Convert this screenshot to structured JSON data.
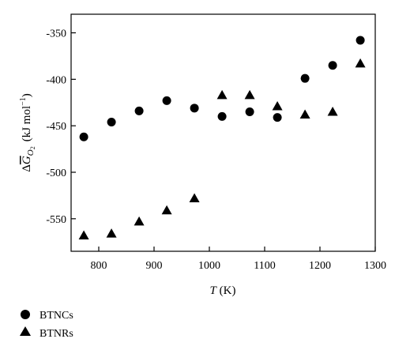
{
  "chart_data": {
    "type": "scatter",
    "xlabel": {
      "italic": "T",
      "rest": " (K)"
    },
    "ylabel": {
      "prefix": "Δ",
      "symbol": "G",
      "sub": "O",
      "sub2": "2",
      "unit": "(kJ mol",
      "unit_sup": "−1",
      "unit_end": ")"
    },
    "xlim": [
      750,
      1300
    ],
    "ylim": [
      -585,
      -330
    ],
    "xticks": [
      800,
      900,
      1000,
      1100,
      1200,
      1300
    ],
    "yticks": [
      -350,
      -400,
      -450,
      -500,
      -550
    ],
    "ytick_labels": [
      "-350",
      "-400",
      "-450",
      "-500",
      "-550"
    ],
    "legend_position": "bottom-left outside",
    "series": [
      {
        "name": "BTNCs",
        "marker": "circle",
        "x": [
          773,
          823,
          873,
          923,
          973,
          1023,
          1073,
          1123,
          1173,
          1223,
          1273
        ],
        "y": [
          -462,
          -446,
          -434,
          -423,
          -431,
          -440,
          -435,
          -441,
          -399,
          -385,
          -358
        ]
      },
      {
        "name": "BTNRs",
        "marker": "triangle",
        "x": [
          773,
          823,
          873,
          923,
          973,
          1023,
          1073,
          1123,
          1173,
          1223,
          1273
        ],
        "y": [
          -568,
          -566,
          -553,
          -541,
          -528,
          -417,
          -417,
          -429,
          -438,
          -435,
          -383
        ]
      }
    ]
  }
}
